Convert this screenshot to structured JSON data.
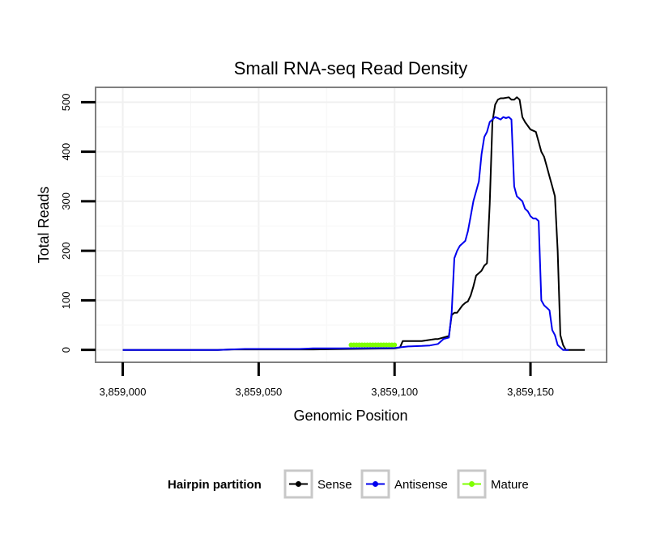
{
  "chart_data": {
    "type": "line",
    "title": "Small RNA-seq Read Density",
    "xlabel": "Genomic Position",
    "ylabel": "Total Reads",
    "xlim": [
      3858990,
      3859178
    ],
    "ylim": [
      -25,
      530
    ],
    "x_ticks": [
      3859000,
      3859050,
      3859100,
      3859150
    ],
    "x_tick_labels": [
      "3,859,000",
      "3,859,050",
      "3,859,100",
      "3,859,150"
    ],
    "y_ticks": [
      0,
      100,
      200,
      300,
      400,
      500
    ],
    "y_tick_labels": [
      "0",
      "100",
      "200",
      "300",
      "400",
      "500"
    ],
    "grid": true,
    "legend": {
      "title": "Hairpin partition",
      "position": "bottom",
      "entries": [
        "Sense",
        "Antisense",
        "Mature"
      ]
    },
    "series": [
      {
        "name": "Sense",
        "color": "#000000",
        "x": [
          3859000,
          3859035,
          3859040,
          3859070,
          3859100,
          3859102,
          3859103,
          3859110,
          3859115,
          3859116,
          3859120,
          3859121,
          3859122,
          3859123,
          3859125,
          3859126,
          3859127,
          3859128,
          3859129,
          3859130,
          3859131,
          3859132,
          3859133,
          3859134,
          3859135,
          3859136,
          3859137,
          3859138,
          3859139,
          3859140,
          3859142,
          3859143,
          3859144,
          3859145,
          3859146,
          3859147,
          3859148,
          3859150,
          3859152,
          3859153,
          3859154,
          3859155,
          3859156,
          3859157,
          3859158,
          3859159,
          3859160,
          3859161,
          3859162,
          3859163,
          3859164,
          3859165,
          3859166,
          3859167,
          3859168,
          3859170
        ],
        "values": [
          0,
          0,
          1,
          1,
          3,
          5,
          18,
          18,
          22,
          22,
          28,
          70,
          75,
          75,
          90,
          95,
          98,
          110,
          128,
          150,
          155,
          160,
          170,
          175,
          295,
          460,
          495,
          505,
          508,
          508,
          510,
          505,
          505,
          510,
          505,
          470,
          460,
          445,
          440,
          420,
          400,
          390,
          370,
          350,
          330,
          310,
          200,
          30,
          10,
          0,
          0,
          0,
          0,
          0,
          0,
          0
        ]
      },
      {
        "name": "Antisense",
        "color": "#0000ee",
        "x": [
          3859000,
          3859035,
          3859045,
          3859065,
          3859070,
          3859080,
          3859100,
          3859105,
          3859110,
          3859113,
          3859116,
          3859118,
          3859120,
          3859121,
          3859122,
          3859123,
          3859124,
          3859125,
          3859126,
          3859127,
          3859128,
          3859129,
          3859130,
          3859131,
          3859132,
          3859133,
          3859134,
          3859135,
          3859136,
          3859137,
          3859138,
          3859139,
          3859140,
          3859141,
          3859142,
          3859143,
          3859144,
          3859145,
          3859146,
          3859147,
          3859148,
          3859149,
          3859150,
          3859151,
          3859152,
          3859153,
          3859154,
          3859155,
          3859156,
          3859157,
          3859158,
          3859159,
          3859160,
          3859161,
          3859162,
          3859163,
          3859164
        ],
        "values": [
          0,
          0,
          2,
          2,
          3,
          3,
          4,
          7,
          8,
          9,
          12,
          22,
          25,
          75,
          185,
          200,
          210,
          215,
          220,
          240,
          270,
          300,
          320,
          340,
          395,
          430,
          440,
          460,
          465,
          470,
          468,
          465,
          470,
          468,
          470,
          465,
          330,
          310,
          305,
          300,
          285,
          280,
          270,
          265,
          265,
          260,
          100,
          90,
          85,
          80,
          40,
          30,
          10,
          5,
          0,
          0,
          0
        ]
      },
      {
        "name": "Mature",
        "color": "#7fff00",
        "x": [
          3859084,
          3859085,
          3859086,
          3859087,
          3859088,
          3859089,
          3859090,
          3859091,
          3859092,
          3859093,
          3859094,
          3859095,
          3859096,
          3859097,
          3859098,
          3859099,
          3859100
        ],
        "values": [
          10,
          10,
          10,
          10,
          10,
          10,
          10,
          10,
          10,
          10,
          10,
          10,
          10,
          10,
          10,
          10,
          10
        ]
      }
    ]
  }
}
